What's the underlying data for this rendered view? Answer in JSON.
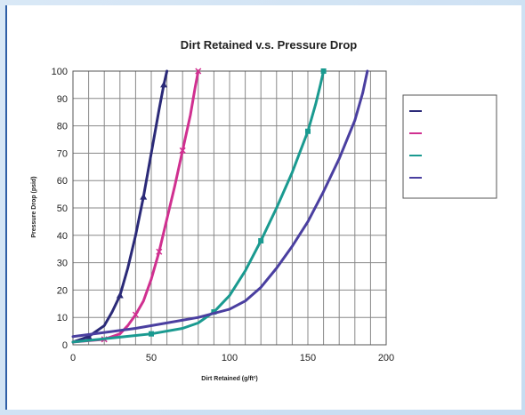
{
  "chart_data": {
    "type": "line",
    "title": "Dirt Retained v.s. Pressure Drop",
    "xlabel": "Dirt Retained (g/ft²)",
    "ylabel": "Pressure Drop (psid)",
    "xlim": [
      0,
      200
    ],
    "ylim": [
      0,
      100
    ],
    "x_ticks": [
      0,
      50,
      100,
      150,
      200
    ],
    "y_ticks": [
      0,
      10,
      20,
      30,
      40,
      50,
      60,
      70,
      80,
      90,
      100
    ],
    "grid": true,
    "legend_position": "right",
    "series": [
      {
        "name": "",
        "color": "#2b2a78",
        "marker": "triangle",
        "x": [
          0,
          10,
          20,
          25,
          30,
          35,
          40,
          45,
          50,
          55,
          58,
          60
        ],
        "y": [
          1,
          3,
          7,
          12,
          18,
          28,
          40,
          54,
          70,
          86,
          95,
          100
        ]
      },
      {
        "name": "",
        "color": "#d03090",
        "marker": "x",
        "x": [
          0,
          20,
          30,
          35,
          40,
          45,
          50,
          55,
          60,
          65,
          70,
          75,
          78,
          80
        ],
        "y": [
          1,
          2,
          4,
          7,
          11,
          16,
          24,
          34,
          46,
          58,
          71,
          84,
          94,
          100
        ]
      },
      {
        "name": "",
        "color": "#1a9a90",
        "marker": "square",
        "x": [
          0,
          50,
          70,
          80,
          90,
          100,
          110,
          120,
          130,
          140,
          150,
          155,
          158,
          160
        ],
        "y": [
          1,
          4,
          6,
          8,
          12,
          18,
          27,
          38,
          50,
          63,
          78,
          88,
          95,
          100
        ]
      },
      {
        "name": "",
        "color": "#4a3fa0",
        "marker": "line",
        "x": [
          0,
          40,
          60,
          80,
          100,
          110,
          120,
          130,
          140,
          150,
          160,
          170,
          180,
          185,
          188
        ],
        "y": [
          3,
          6,
          8,
          10,
          13,
          16,
          21,
          28,
          36,
          45,
          56,
          68,
          82,
          92,
          100
        ]
      }
    ]
  }
}
